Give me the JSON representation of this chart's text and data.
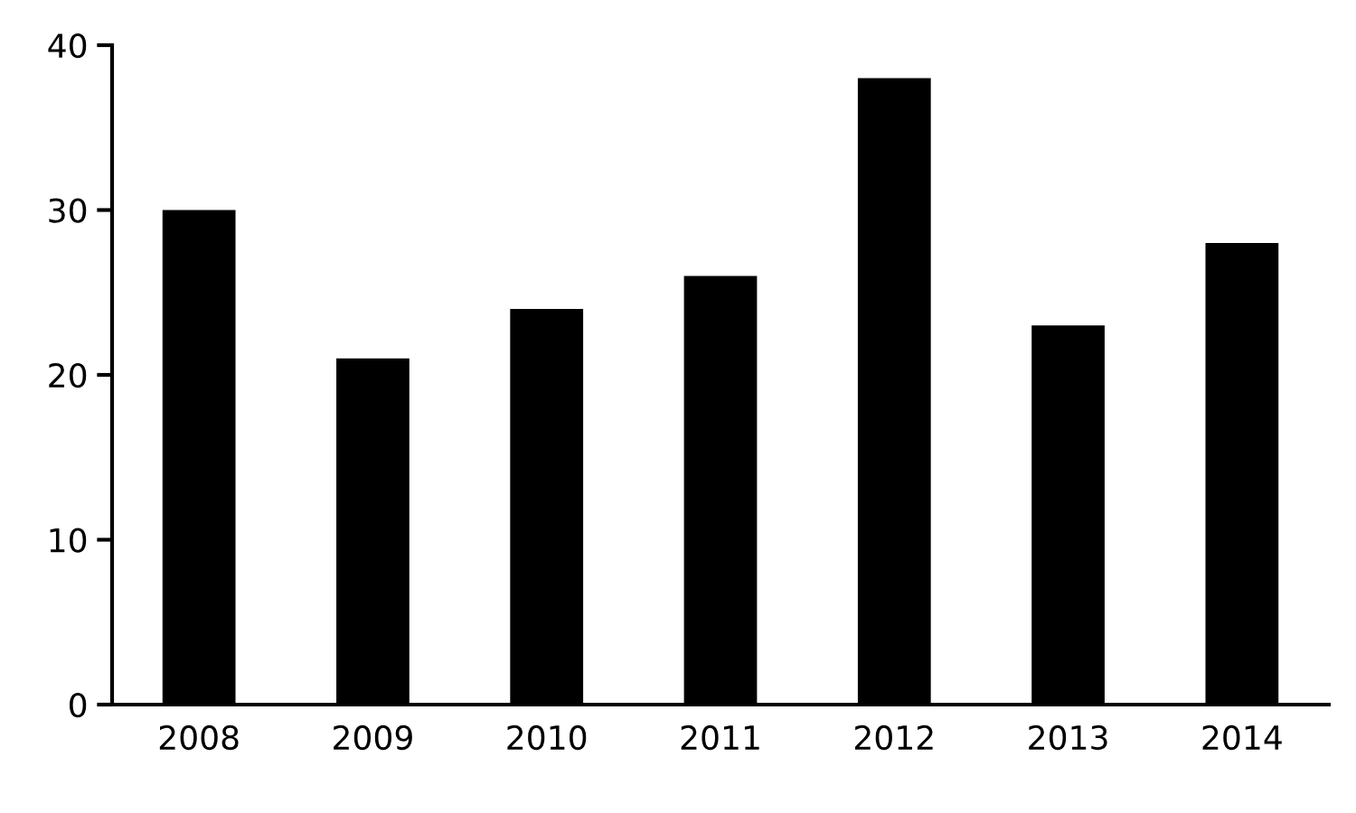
{
  "chart_data": {
    "type": "bar",
    "categories": [
      "2008",
      "2009",
      "2010",
      "2011",
      "2012",
      "2013",
      "2014"
    ],
    "values": [
      30,
      21,
      24,
      26,
      38,
      23,
      28
    ],
    "color": "#000000",
    "ylim": [
      0,
      40
    ],
    "yticks": [
      0,
      10,
      20,
      30,
      40
    ],
    "grid": false,
    "legend": false
  }
}
